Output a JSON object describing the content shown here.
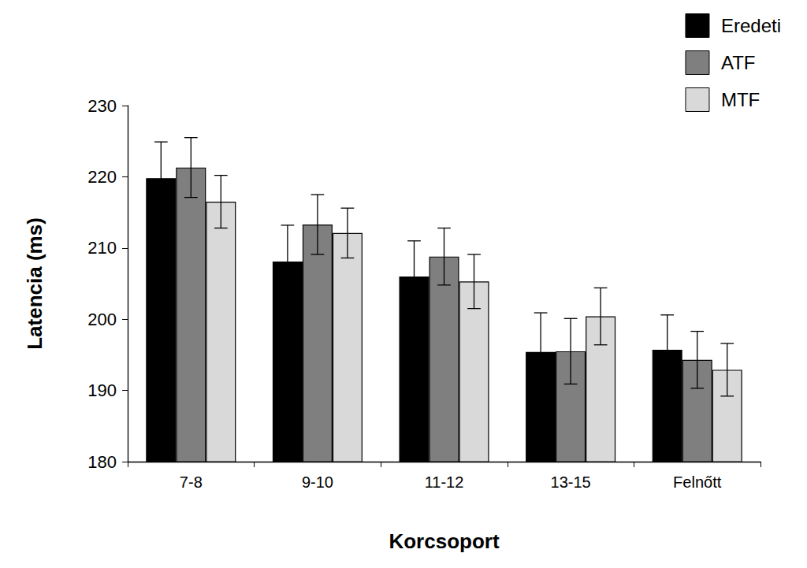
{
  "chart_data": {
    "type": "bar",
    "x_label": "Korcsoport",
    "y_label": "Latencia (ms)",
    "categories": [
      "7-8",
      "9-10",
      "11-12",
      "13-15",
      "Felnőtt"
    ],
    "series": [
      {
        "name": "Eredeti",
        "color": "#000000",
        "values": [
          219.8,
          208.1,
          206.0,
          195.4,
          195.7
        ],
        "errors": [
          5.1,
          5.1,
          5.0,
          5.5,
          4.9
        ]
      },
      {
        "name": "ATF",
        "color": "#7f7f7f",
        "values": [
          221.3,
          213.3,
          208.8,
          195.5,
          194.3
        ],
        "errors": [
          4.2,
          4.2,
          4.0,
          4.6,
          4.0
        ]
      },
      {
        "name": "MTF",
        "color": "#d9d9d9",
        "values": [
          216.5,
          212.1,
          205.3,
          200.4,
          192.9
        ],
        "errors": [
          3.7,
          3.5,
          3.8,
          4.0,
          3.7
        ]
      }
    ],
    "ylim": [
      180,
      230
    ],
    "yticks": [
      180,
      190,
      200,
      210,
      220,
      230
    ],
    "grid": false,
    "legend": "upper right"
  }
}
